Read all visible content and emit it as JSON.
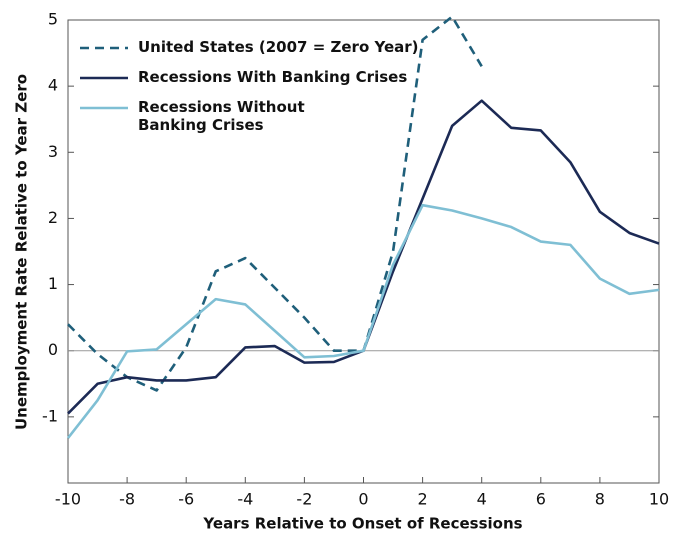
{
  "chart_data": {
    "type": "line",
    "xlabel": "Years Relative to Onset of Recessions",
    "ylabel": "Unemployment Rate Relative to Year Zero",
    "x": [
      -10,
      -9,
      -8,
      -7,
      -6,
      -5,
      -4,
      -3,
      -2,
      -1,
      0,
      1,
      2,
      3,
      4,
      5,
      6,
      7,
      8,
      9,
      10
    ],
    "series": [
      {
        "name": "United States (2007 = Zero Year)",
        "color": "#1f5f7a",
        "dashed": true,
        "values": [
          0.4,
          -0.05,
          -0.4,
          -0.6,
          0.05,
          1.2,
          1.4,
          0.95,
          0.5,
          0.0,
          0.0,
          1.5,
          4.7,
          5.05,
          4.3,
          null,
          null,
          null,
          null,
          null,
          null
        ]
      },
      {
        "name": "Recessions With Banking Crises",
        "color": "#1c2a55",
        "dashed": false,
        "values": [
          -0.95,
          -0.5,
          -0.4,
          -0.45,
          -0.45,
          -0.4,
          0.05,
          0.07,
          -0.18,
          -0.17,
          0.0,
          1.2,
          2.3,
          3.4,
          3.78,
          3.37,
          3.33,
          2.85,
          2.1,
          1.78,
          1.62
        ]
      },
      {
        "name": "Recessions Without Banking Crises",
        "color": "#7fbfd4",
        "dashed": false,
        "values": [
          -1.32,
          -0.75,
          -0.01,
          0.02,
          0.4,
          0.78,
          0.7,
          0.3,
          -0.1,
          -0.08,
          0.0,
          1.3,
          2.2,
          2.12,
          2.0,
          1.87,
          1.65,
          1.6,
          1.09,
          0.86,
          0.92
        ]
      }
    ],
    "xlim": [
      -10,
      10
    ],
    "xticks": [
      -10,
      -8,
      -6,
      -4,
      -2,
      0,
      2,
      4,
      6,
      8,
      10
    ],
    "ylim": [
      -2,
      5
    ],
    "yticks": [
      -1,
      0,
      1,
      2,
      3,
      4,
      5
    ],
    "legend": "upper left"
  }
}
